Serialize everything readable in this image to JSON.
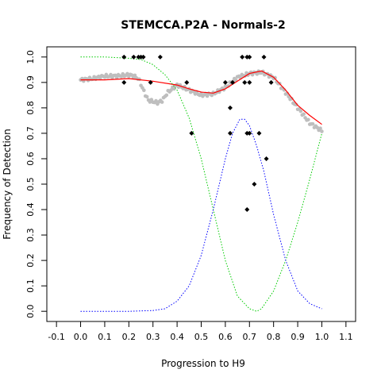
{
  "chart_data": {
    "type": "scatter",
    "title": "STEMCCA.P2A - Normals-2",
    "xlabel": "Progression to H9",
    "ylabel": "Frequency of Detection",
    "xlim": [
      -0.14,
      1.14
    ],
    "ylim": [
      -0.04,
      1.04
    ],
    "x_ticks": [
      "-0.1",
      "0.0",
      "0.1",
      "0.2",
      "0.3",
      "0.4",
      "0.5",
      "0.6",
      "0.7",
      "0.8",
      "0.9",
      "1.0",
      "1.1"
    ],
    "y_ticks": [
      "0.0",
      "0.1",
      "0.2",
      "0.3",
      "0.4",
      "0.5",
      "0.6",
      "0.7",
      "0.8",
      "0.9",
      "1.0"
    ],
    "grid": false,
    "legend": "none",
    "series": [
      {
        "kind": "points",
        "color": "#000000",
        "points": [
          [
            0.18,
            1.0
          ],
          [
            0.18,
            0.9
          ],
          [
            0.22,
            1.0
          ],
          [
            0.24,
            1.0
          ],
          [
            0.25,
            1.0
          ],
          [
            0.26,
            1.0
          ],
          [
            0.29,
            0.9
          ],
          [
            0.33,
            1.0
          ],
          [
            0.44,
            0.9
          ],
          [
            0.46,
            0.7
          ],
          [
            0.6,
            0.9
          ],
          [
            0.63,
            0.9
          ],
          [
            0.62,
            0.7
          ],
          [
            0.62,
            0.8
          ],
          [
            0.67,
            1.0
          ],
          [
            0.68,
            0.9
          ],
          [
            0.69,
            1.0
          ],
          [
            0.7,
            1.0
          ],
          [
            0.69,
            0.7
          ],
          [
            0.7,
            0.9
          ],
          [
            0.7,
            0.7
          ],
          [
            0.69,
            0.4
          ],
          [
            0.72,
            0.5
          ],
          [
            0.74,
            0.7
          ],
          [
            0.76,
            1.0
          ],
          [
            0.77,
            0.6
          ],
          [
            0.79,
            0.9
          ]
        ]
      },
      {
        "kind": "smoothed-points",
        "color": "#bebebe",
        "x": [
          0.0,
          0.05,
          0.1,
          0.15,
          0.2,
          0.22,
          0.24,
          0.26,
          0.28,
          0.3,
          0.32,
          0.34,
          0.36,
          0.4,
          0.45,
          0.5,
          0.55,
          0.6,
          0.65,
          0.7,
          0.75,
          0.8,
          0.85,
          0.9,
          0.95,
          1.0
        ],
        "y": [
          0.91,
          0.915,
          0.925,
          0.925,
          0.93,
          0.925,
          0.915,
          0.87,
          0.83,
          0.825,
          0.82,
          0.83,
          0.86,
          0.89,
          0.87,
          0.85,
          0.855,
          0.88,
          0.92,
          0.935,
          0.94,
          0.92,
          0.86,
          0.8,
          0.74,
          0.71
        ]
      },
      {
        "kind": "line",
        "color": "#ff0000",
        "style": "solid",
        "x": [
          0.0,
          0.1,
          0.2,
          0.3,
          0.4,
          0.45,
          0.5,
          0.55,
          0.6,
          0.65,
          0.7,
          0.75,
          0.8,
          0.85,
          0.9,
          0.95,
          1.0
        ],
        "y": [
          0.91,
          0.91,
          0.915,
          0.905,
          0.89,
          0.875,
          0.862,
          0.858,
          0.875,
          0.905,
          0.935,
          0.945,
          0.92,
          0.87,
          0.81,
          0.77,
          0.735
        ]
      },
      {
        "kind": "line",
        "color": "#00cc00",
        "style": "dotted",
        "x": [
          0.0,
          0.1,
          0.2,
          0.25,
          0.3,
          0.35,
          0.4,
          0.45,
          0.5,
          0.55,
          0.6,
          0.65,
          0.7,
          0.73,
          0.75,
          0.8,
          0.85,
          0.9,
          0.95,
          1.0
        ],
        "y": [
          1.0,
          1.0,
          0.995,
          0.99,
          0.97,
          0.93,
          0.87,
          0.76,
          0.6,
          0.4,
          0.2,
          0.06,
          0.01,
          0.0,
          0.01,
          0.08,
          0.2,
          0.35,
          0.52,
          0.7
        ]
      },
      {
        "kind": "line",
        "color": "#0000ff",
        "style": "dotted",
        "x": [
          0.0,
          0.2,
          0.3,
          0.35,
          0.4,
          0.45,
          0.5,
          0.55,
          0.6,
          0.63,
          0.66,
          0.68,
          0.7,
          0.73,
          0.76,
          0.8,
          0.85,
          0.9,
          0.95,
          1.0
        ],
        "y": [
          0.0,
          0.0,
          0.003,
          0.01,
          0.04,
          0.1,
          0.22,
          0.4,
          0.6,
          0.7,
          0.755,
          0.755,
          0.73,
          0.65,
          0.55,
          0.38,
          0.2,
          0.08,
          0.03,
          0.01
        ]
      }
    ]
  }
}
